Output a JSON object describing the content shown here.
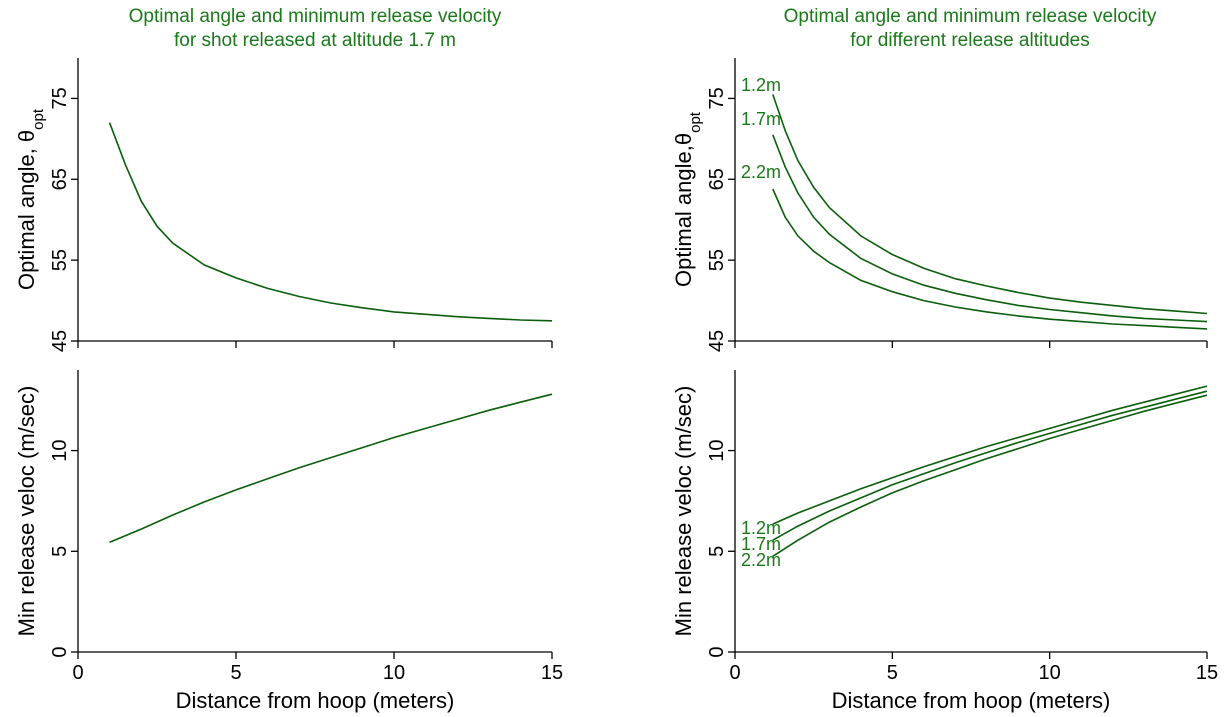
{
  "chart_data": [
    {
      "id": "left_top",
      "type": "line",
      "title": [
        "Optimal angle and minimum release velocity",
        "for shot released at altitude 1.7 m"
      ],
      "xlabel": "",
      "ylabel": "Optimal angle, θ",
      "ylabel_sub": "opt",
      "xlim": [
        0,
        15
      ],
      "ylim": [
        45,
        80
      ],
      "yticks": [
        45,
        55,
        65,
        75
      ],
      "xticks": [
        0,
        5,
        10,
        15
      ],
      "show_xtick_labels": false,
      "series": [
        {
          "x": [
            1,
            1.5,
            2,
            2.5,
            3,
            4,
            5,
            6,
            7,
            8,
            9,
            10,
            11,
            12,
            13,
            14,
            15
          ],
          "y": [
            72,
            66.8,
            62.3,
            59.2,
            57.1,
            54.4,
            52.8,
            51.5,
            50.5,
            49.7,
            49.1,
            48.6,
            48.3,
            48.0,
            47.8,
            47.6,
            47.5
          ]
        }
      ]
    },
    {
      "id": "left_bottom",
      "type": "line",
      "xlabel": "Distance from hoop (meters)",
      "ylabel": "Min release veloc (m/sec)",
      "xlim": [
        0,
        15
      ],
      "ylim": [
        0,
        14
      ],
      "yticks": [
        0,
        5,
        10
      ],
      "xticks": [
        0,
        5,
        10,
        15
      ],
      "series": [
        {
          "x": [
            1,
            2,
            3,
            4,
            5,
            6,
            7,
            8,
            9,
            10,
            11,
            12,
            13,
            14,
            15
          ],
          "y": [
            5.45,
            6.1,
            6.8,
            7.45,
            8.05,
            8.6,
            9.15,
            9.65,
            10.15,
            10.65,
            11.1,
            11.55,
            12.0,
            12.4,
            12.8
          ]
        }
      ]
    },
    {
      "id": "right_top",
      "type": "line",
      "title": [
        "Optimal angle and minimum release velocity",
        "for different release altitudes"
      ],
      "xlabel": "",
      "ylabel": "Optimal angle,θ",
      "ylabel_sub": "opt",
      "xlim": [
        0,
        15
      ],
      "ylim": [
        45,
        80
      ],
      "yticks": [
        45,
        55,
        65,
        75
      ],
      "xticks": [
        0,
        5,
        10,
        15
      ],
      "show_xtick_labels": false,
      "series": [
        {
          "name": "1.2m",
          "x": [
            1.2,
            1.6,
            2,
            2.5,
            3,
            4,
            5,
            6,
            7,
            8,
            9,
            10,
            11,
            12,
            13,
            14,
            15
          ],
          "y": [
            75.5,
            71,
            67.3,
            64,
            61.5,
            58,
            55.7,
            54.0,
            52.7,
            51.8,
            51.0,
            50.3,
            49.8,
            49.4,
            49.0,
            48.7,
            48.4
          ]
        },
        {
          "name": "1.7m",
          "x": [
            1.2,
            1.6,
            2,
            2.5,
            3,
            4,
            5,
            6,
            7,
            8,
            9,
            10,
            11,
            12,
            13,
            14,
            15
          ],
          "y": [
            70.5,
            66.5,
            63.3,
            60.3,
            58.2,
            55.2,
            53.3,
            51.9,
            50.9,
            50.1,
            49.4,
            48.9,
            48.5,
            48.1,
            47.8,
            47.6,
            47.4
          ]
        },
        {
          "name": "2.2m",
          "x": [
            1.2,
            1.6,
            2,
            2.5,
            3,
            4,
            5,
            6,
            7,
            8,
            9,
            10,
            11,
            12,
            13,
            14,
            15
          ],
          "y": [
            63.8,
            60.3,
            58.0,
            56.1,
            54.7,
            52.5,
            51.1,
            50.0,
            49.2,
            48.6,
            48.1,
            47.7,
            47.4,
            47.1,
            46.9,
            46.7,
            46.5
          ]
        }
      ]
    },
    {
      "id": "right_bottom",
      "type": "line",
      "xlabel": "Distance from hoop (meters)",
      "ylabel": "Min release veloc (m/sec)",
      "xlim": [
        0,
        15
      ],
      "ylim": [
        0,
        14
      ],
      "yticks": [
        0,
        5,
        10
      ],
      "xticks": [
        0,
        5,
        10,
        15
      ],
      "series": [
        {
          "name": "1.2m",
          "x": [
            1.2,
            2,
            3,
            4,
            5,
            6,
            7,
            8,
            9,
            10,
            11,
            12,
            13,
            14,
            15
          ],
          "y": [
            6.35,
            6.9,
            7.5,
            8.1,
            8.65,
            9.2,
            9.7,
            10.2,
            10.65,
            11.1,
            11.55,
            12.0,
            12.4,
            12.8,
            13.2
          ]
        },
        {
          "name": "1.7m",
          "x": [
            1.2,
            2,
            3,
            4,
            5,
            6,
            7,
            8,
            9,
            10,
            11,
            12,
            13,
            14,
            15
          ],
          "y": [
            5.55,
            6.25,
            7.0,
            7.65,
            8.3,
            8.85,
            9.4,
            9.9,
            10.4,
            10.85,
            11.3,
            11.75,
            12.15,
            12.55,
            12.95
          ]
        },
        {
          "name": "2.2m",
          "x": [
            1.2,
            2,
            3,
            4,
            5,
            6,
            7,
            8,
            9,
            10,
            11,
            12,
            13,
            14,
            15
          ],
          "y": [
            4.75,
            5.55,
            6.45,
            7.2,
            7.9,
            8.5,
            9.05,
            9.6,
            10.1,
            10.6,
            11.05,
            11.5,
            11.95,
            12.35,
            12.75
          ]
        }
      ]
    }
  ],
  "colors": {
    "curve": "#0b5e0b",
    "title": "#1a7a1a",
    "axis": "#000000"
  }
}
